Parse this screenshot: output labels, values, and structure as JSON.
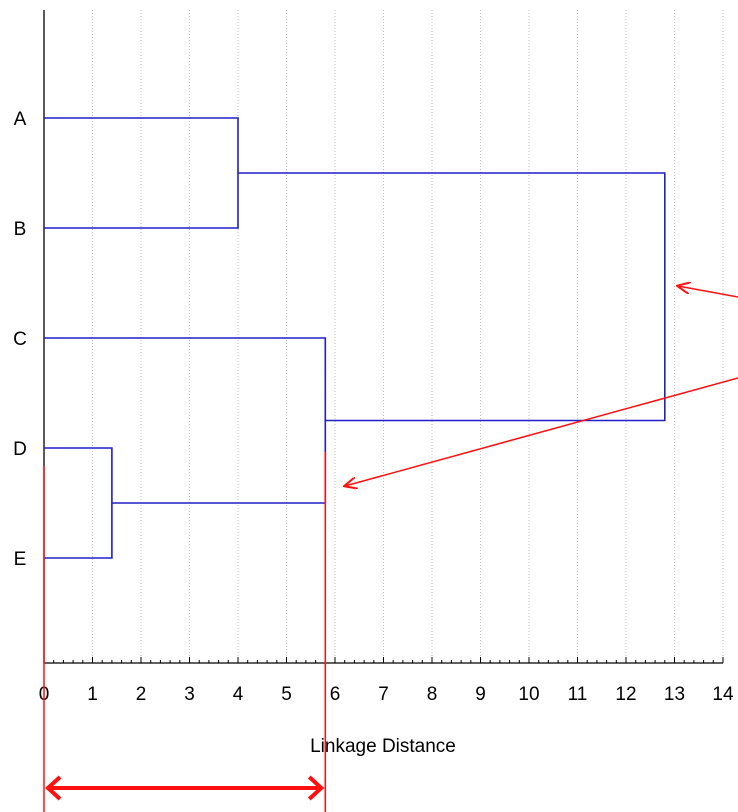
{
  "chart_data": {
    "type": "dendrogram",
    "orientation": "horizontal",
    "xlabel": "Linkage Distance",
    "xlim": [
      0,
      14
    ],
    "x_ticks": [
      "0",
      "1",
      "2",
      "3",
      "4",
      "5",
      "6",
      "7",
      "8",
      "9",
      "10",
      "11",
      "12",
      "13",
      "14"
    ],
    "x_minor_ticks_per_major": 5,
    "grid": "vertical-dotted",
    "leaves": [
      "A",
      "B",
      "C",
      "D",
      "E"
    ],
    "merges": [
      {
        "items": [
          "D",
          "E"
        ],
        "distance": 1.4
      },
      {
        "items": [
          "A",
          "B"
        ],
        "distance": 4.0
      },
      {
        "items": [
          "C",
          "D+E"
        ],
        "distance": 5.8
      },
      {
        "items": [
          "A+B",
          "C+D+E"
        ],
        "distance": 12.8
      }
    ],
    "line_color": "#1f1fc8",
    "annotation_color": "#ff1010",
    "annotations": [
      {
        "type": "vertical-line",
        "x": 0
      },
      {
        "type": "vertical-line",
        "x": 5.8
      },
      {
        "type": "double-arrow",
        "from_x": 0,
        "to_x": 5.8
      },
      {
        "type": "arrow",
        "points_to_merge": "A+B with C+D+E"
      },
      {
        "type": "arrow",
        "points_to_merge": "C with D+E"
      }
    ]
  }
}
